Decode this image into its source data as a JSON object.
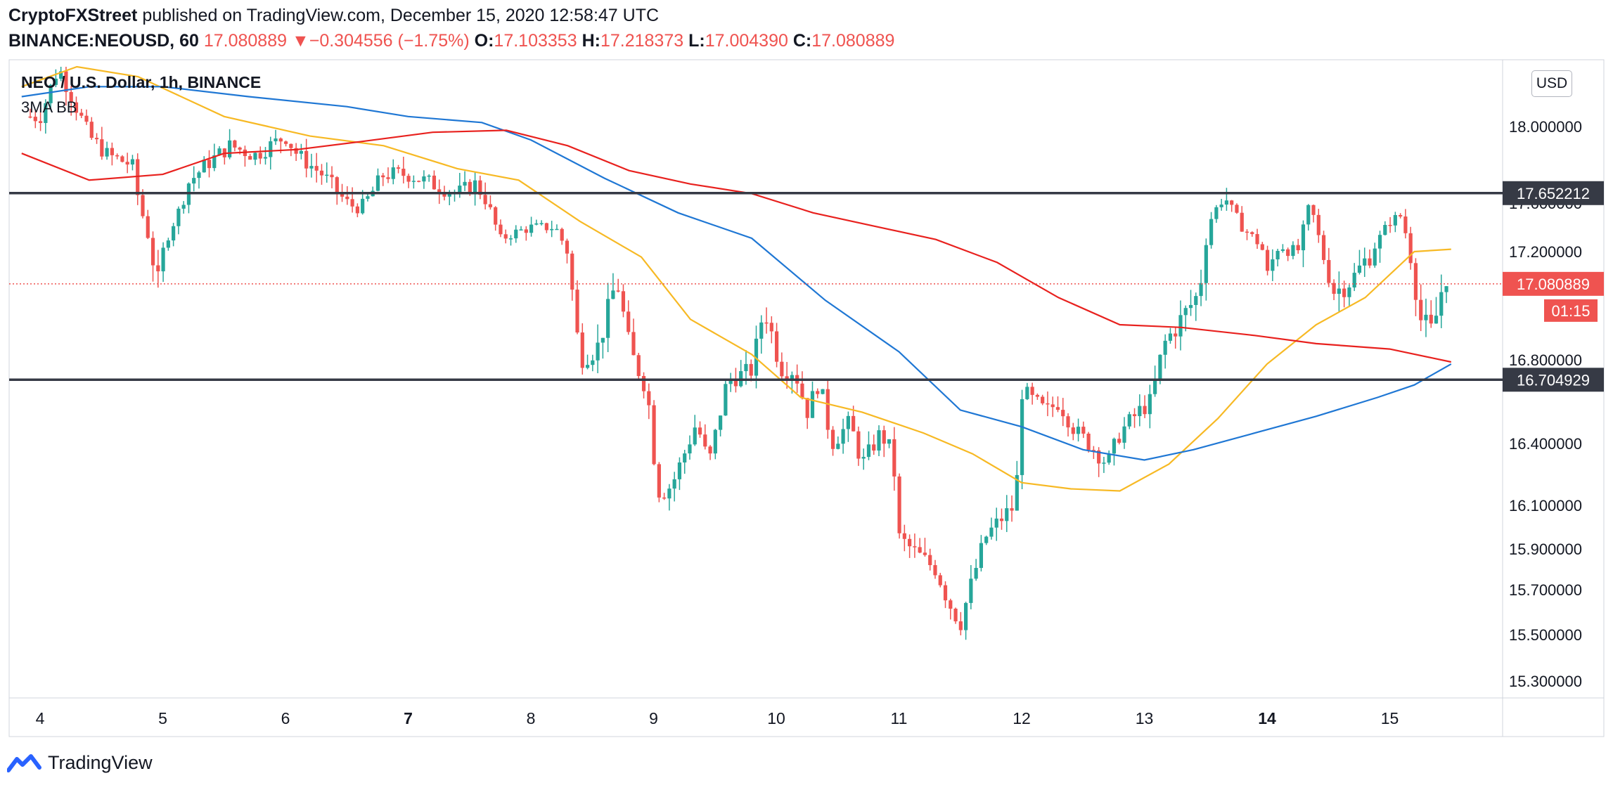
{
  "header": {
    "publisher": "CryptoFXStreet",
    "published_text": "published on TradingView.com, December 15, 2020 12:58:47 UTC",
    "symbol": "BINANCE:NEOUSD, 60",
    "last": "17.080889",
    "change_arrow": "▼",
    "change": "−0.304556 (−1.75%)",
    "o_label": "O:",
    "o_value": "17.103353",
    "h_label": "H:",
    "h_value": "17.218373",
    "l_label": "L:",
    "l_value": "17.004390",
    "c_label": "C:",
    "c_value": "17.080889"
  },
  "legend": {
    "title": "NEO / U.S. Dollar, 1h, BINANCE",
    "indicator": "3MA BB"
  },
  "currency_button": "USD",
  "footer": {
    "brand": "TradingView",
    "logo_icon": "tradingview-logo-icon"
  },
  "colors": {
    "up": "#26a69a",
    "down": "#ef5350",
    "ma_short": "#f7b924",
    "ma_mid": "#1f77d4",
    "ma_long": "#e8211e",
    "level": "#363a45"
  },
  "chart_data": {
    "type": "candlestick",
    "x_ticks": [
      {
        "label": "4",
        "day": 4,
        "bold": false
      },
      {
        "label": "5",
        "day": 5,
        "bold": false
      },
      {
        "label": "6",
        "day": 6,
        "bold": false
      },
      {
        "label": "7",
        "day": 7,
        "bold": true
      },
      {
        "label": "8",
        "day": 8,
        "bold": false
      },
      {
        "label": "9",
        "day": 9,
        "bold": false
      },
      {
        "label": "10",
        "day": 10,
        "bold": false
      },
      {
        "label": "11",
        "day": 11,
        "bold": false
      },
      {
        "label": "12",
        "day": 12,
        "bold": false
      },
      {
        "label": "13",
        "day": 13,
        "bold": false
      },
      {
        "label": "14",
        "day": 14,
        "bold": true
      },
      {
        "label": "15",
        "day": 15,
        "bold": false
      }
    ],
    "y_ticks": [
      "18.000000",
      "17.600000",
      "17.200000",
      "16.800000",
      "16.400000",
      "16.100000",
      "15.900000",
      "15.700000",
      "15.500000",
      "15.300000"
    ],
    "ylim": [
      15.22,
      18.3
    ],
    "xlim": [
      3.85,
      15.95
    ],
    "horizontal_levels": [
      {
        "value": 17.652212,
        "label": "17.652212"
      },
      {
        "value": 16.704929,
        "label": "16.704929"
      }
    ],
    "last_price": {
      "value": 17.080889,
      "label": "17.080889",
      "countdown": "01:15"
    },
    "ohlc_anchors": [
      [
        4.0,
        18.05
      ],
      [
        4.15,
        18.3
      ],
      [
        4.4,
        17.95
      ],
      [
        4.55,
        17.85
      ],
      [
        4.75,
        17.8
      ],
      [
        4.85,
        17.45
      ],
      [
        4.95,
        17.05
      ],
      [
        5.05,
        17.35
      ],
      [
        5.2,
        17.7
      ],
      [
        5.35,
        17.8
      ],
      [
        5.55,
        17.9
      ],
      [
        5.75,
        17.85
      ],
      [
        6.0,
        17.95
      ],
      [
        6.1,
        17.85
      ],
      [
        6.3,
        17.75
      ],
      [
        6.5,
        17.6
      ],
      [
        6.6,
        17.55
      ],
      [
        6.8,
        17.75
      ],
      [
        7.0,
        17.75
      ],
      [
        7.2,
        17.7
      ],
      [
        7.4,
        17.65
      ],
      [
        7.55,
        17.7
      ],
      [
        7.65,
        17.6
      ],
      [
        7.75,
        17.3
      ],
      [
        7.85,
        17.35
      ],
      [
        8.0,
        17.4
      ],
      [
        8.2,
        17.4
      ],
      [
        8.3,
        17.2
      ],
      [
        8.4,
        16.8
      ],
      [
        8.55,
        16.85
      ],
      [
        8.7,
        17.1
      ],
      [
        8.8,
        16.85
      ],
      [
        8.95,
        16.65
      ],
      [
        9.0,
        16.35
      ],
      [
        9.05,
        16.15
      ],
      [
        9.15,
        16.2
      ],
      [
        9.25,
        16.35
      ],
      [
        9.35,
        16.5
      ],
      [
        9.45,
        16.3
      ],
      [
        9.6,
        16.7
      ],
      [
        9.8,
        16.75
      ],
      [
        9.9,
        17.0
      ],
      [
        10.05,
        16.75
      ],
      [
        10.15,
        16.75
      ],
      [
        10.25,
        16.55
      ],
      [
        10.35,
        16.7
      ],
      [
        10.45,
        16.4
      ],
      [
        10.6,
        16.5
      ],
      [
        10.7,
        16.3
      ],
      [
        10.85,
        16.45
      ],
      [
        10.95,
        16.35
      ],
      [
        11.0,
        15.95
      ],
      [
        11.1,
        15.9
      ],
      [
        11.2,
        15.85
      ],
      [
        11.3,
        15.8
      ],
      [
        11.4,
        15.65
      ],
      [
        11.5,
        15.55
      ],
      [
        11.6,
        15.75
      ],
      [
        11.7,
        15.95
      ],
      [
        11.85,
        16.05
      ],
      [
        11.95,
        16.1
      ],
      [
        12.0,
        16.65
      ],
      [
        12.1,
        16.6
      ],
      [
        12.2,
        16.55
      ],
      [
        12.3,
        16.6
      ],
      [
        12.45,
        16.45
      ],
      [
        12.55,
        16.4
      ],
      [
        12.7,
        16.3
      ],
      [
        12.8,
        16.45
      ],
      [
        12.95,
        16.55
      ],
      [
        13.05,
        16.6
      ],
      [
        13.15,
        16.85
      ],
      [
        13.3,
        16.95
      ],
      [
        13.45,
        17.05
      ],
      [
        13.55,
        17.5
      ],
      [
        13.65,
        17.65
      ],
      [
        13.8,
        17.4
      ],
      [
        13.95,
        17.25
      ],
      [
        14.0,
        17.1
      ],
      [
        14.1,
        17.25
      ],
      [
        14.25,
        17.2
      ],
      [
        14.35,
        17.6
      ],
      [
        14.45,
        17.2
      ],
      [
        14.55,
        17.05
      ],
      [
        14.7,
        17.1
      ],
      [
        14.85,
        17.2
      ],
      [
        15.0,
        17.45
      ],
      [
        15.1,
        17.5
      ],
      [
        15.15,
        17.25
      ],
      [
        15.25,
        16.95
      ],
      [
        15.35,
        16.9
      ],
      [
        15.45,
        17.12
      ],
      [
        15.5,
        17.08
      ]
    ],
    "moving_averages": [
      {
        "key": "ma_short",
        "points": [
          [
            3.85,
            18.2
          ],
          [
            4.3,
            18.3
          ],
          [
            4.8,
            18.25
          ],
          [
            5.5,
            18.05
          ],
          [
            6.2,
            17.95
          ],
          [
            6.8,
            17.9
          ],
          [
            7.4,
            17.78
          ],
          [
            7.9,
            17.72
          ],
          [
            8.4,
            17.45
          ],
          [
            8.9,
            17.18
          ],
          [
            9.3,
            16.95
          ],
          [
            9.8,
            16.82
          ],
          [
            10.2,
            16.62
          ],
          [
            10.7,
            16.55
          ],
          [
            11.2,
            16.45
          ],
          [
            11.6,
            16.35
          ],
          [
            12.0,
            16.21
          ],
          [
            12.4,
            16.18
          ],
          [
            12.8,
            16.17
          ],
          [
            13.2,
            16.3
          ],
          [
            13.6,
            16.52
          ],
          [
            14.0,
            16.78
          ],
          [
            14.4,
            16.93
          ],
          [
            14.8,
            17.03
          ],
          [
            15.2,
            17.2
          ],
          [
            15.5,
            17.22
          ]
        ]
      },
      {
        "key": "ma_mid",
        "points": [
          [
            3.85,
            18.15
          ],
          [
            4.4,
            18.2
          ],
          [
            5.0,
            18.2
          ],
          [
            5.7,
            18.15
          ],
          [
            6.5,
            18.1
          ],
          [
            7.0,
            18.05
          ],
          [
            7.6,
            18.02
          ],
          [
            8.0,
            17.93
          ],
          [
            8.6,
            17.73
          ],
          [
            9.2,
            17.52
          ],
          [
            9.8,
            17.31
          ],
          [
            10.4,
            17.02
          ],
          [
            11.0,
            16.83
          ],
          [
            11.5,
            16.56
          ],
          [
            12.0,
            16.48
          ],
          [
            12.5,
            16.37
          ],
          [
            13.0,
            16.32
          ],
          [
            13.4,
            16.37
          ],
          [
            13.9,
            16.45
          ],
          [
            14.4,
            16.53
          ],
          [
            14.9,
            16.62
          ],
          [
            15.2,
            16.68
          ],
          [
            15.5,
            16.78
          ]
        ]
      },
      {
        "key": "ma_long",
        "points": [
          [
            3.85,
            17.86
          ],
          [
            4.4,
            17.72
          ],
          [
            5.0,
            17.75
          ],
          [
            5.5,
            17.86
          ],
          [
            6.1,
            17.88
          ],
          [
            6.6,
            17.92
          ],
          [
            7.2,
            17.97
          ],
          [
            7.8,
            17.98
          ],
          [
            8.3,
            17.9
          ],
          [
            8.8,
            17.77
          ],
          [
            9.3,
            17.7
          ],
          [
            9.8,
            17.65
          ],
          [
            10.3,
            17.52
          ],
          [
            10.8,
            17.41
          ],
          [
            11.3,
            17.3
          ],
          [
            11.8,
            17.16
          ],
          [
            12.3,
            17.03
          ],
          [
            12.8,
            16.93
          ],
          [
            13.3,
            16.92
          ],
          [
            13.9,
            16.89
          ],
          [
            14.4,
            16.86
          ],
          [
            15.0,
            16.84
          ],
          [
            15.5,
            16.79
          ]
        ]
      }
    ]
  }
}
